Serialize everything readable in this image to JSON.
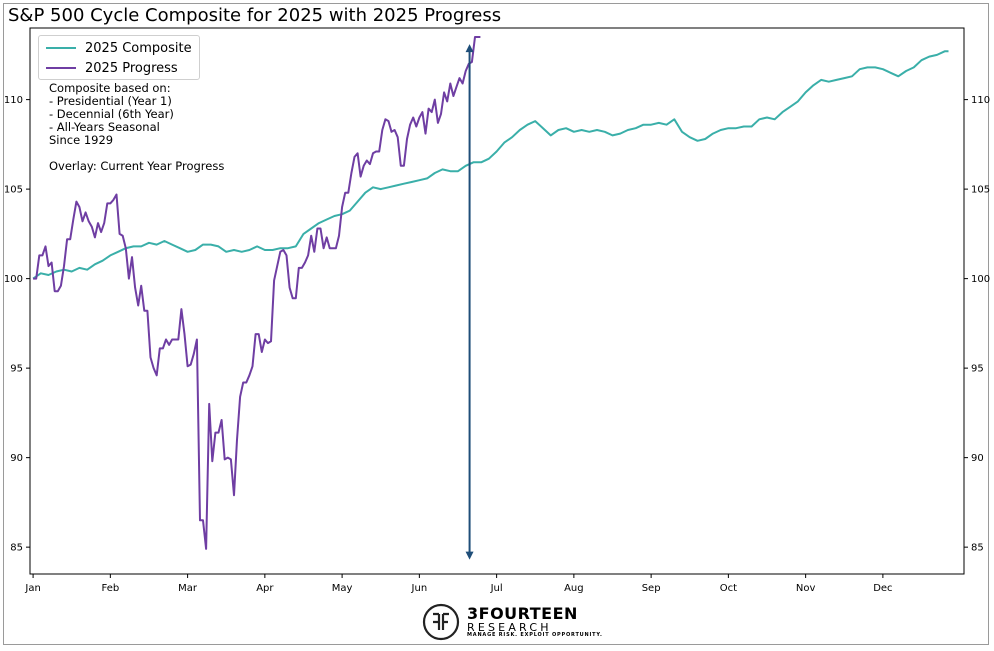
{
  "chart_data": {
    "type": "line",
    "title": "S&P 500 Cycle Composite for 2025 with 2025 Progress",
    "xlabel": "",
    "ylabel": "",
    "ylim": [
      83.5,
      114
    ],
    "xlim": [
      -0.04,
      12.05
    ],
    "yticks": [
      85,
      90,
      95,
      100,
      105,
      110
    ],
    "xticks": [
      "Jan",
      "Feb",
      "Mar",
      "Apr",
      "May",
      "Jun",
      "Jul",
      "Aug",
      "Sep",
      "Oct",
      "Nov",
      "Dec"
    ],
    "legend": {
      "position": "top-left",
      "entries": [
        "2025 Composite",
        "2025 Progress"
      ]
    },
    "series": [
      {
        "name": "2025 Composite",
        "color": "#3aafa9",
        "points": [
          [
            0.0,
            100.0
          ],
          [
            0.1,
            100.3
          ],
          [
            0.2,
            100.2
          ],
          [
            0.3,
            100.4
          ],
          [
            0.4,
            100.5
          ],
          [
            0.5,
            100.4
          ],
          [
            0.6,
            100.6
          ],
          [
            0.7,
            100.5
          ],
          [
            0.8,
            100.8
          ],
          [
            0.9,
            101.0
          ],
          [
            1.0,
            101.3
          ],
          [
            1.1,
            101.5
          ],
          [
            1.2,
            101.7
          ],
          [
            1.3,
            101.8
          ],
          [
            1.4,
            101.8
          ],
          [
            1.5,
            102.0
          ],
          [
            1.6,
            101.9
          ],
          [
            1.7,
            102.1
          ],
          [
            1.8,
            101.9
          ],
          [
            1.9,
            101.7
          ],
          [
            2.0,
            101.5
          ],
          [
            2.1,
            101.6
          ],
          [
            2.2,
            101.9
          ],
          [
            2.3,
            101.9
          ],
          [
            2.4,
            101.8
          ],
          [
            2.5,
            101.5
          ],
          [
            2.6,
            101.6
          ],
          [
            2.7,
            101.5
          ],
          [
            2.8,
            101.6
          ],
          [
            2.9,
            101.8
          ],
          [
            3.0,
            101.6
          ],
          [
            3.1,
            101.6
          ],
          [
            3.2,
            101.7
          ],
          [
            3.3,
            101.7
          ],
          [
            3.4,
            101.8
          ],
          [
            3.5,
            102.5
          ],
          [
            3.6,
            102.8
          ],
          [
            3.7,
            103.1
          ],
          [
            3.8,
            103.3
          ],
          [
            3.9,
            103.5
          ],
          [
            4.0,
            103.6
          ],
          [
            4.1,
            103.8
          ],
          [
            4.2,
            104.3
          ],
          [
            4.3,
            104.8
          ],
          [
            4.4,
            105.1
          ],
          [
            4.5,
            105.0
          ],
          [
            4.6,
            105.1
          ],
          [
            4.7,
            105.2
          ],
          [
            4.8,
            105.3
          ],
          [
            4.9,
            105.4
          ],
          [
            5.0,
            105.5
          ],
          [
            5.1,
            105.6
          ],
          [
            5.2,
            105.9
          ],
          [
            5.3,
            106.1
          ],
          [
            5.4,
            106.0
          ],
          [
            5.5,
            106.0
          ],
          [
            5.6,
            106.3
          ],
          [
            5.7,
            106.5
          ],
          [
            5.8,
            106.5
          ],
          [
            5.9,
            106.7
          ],
          [
            6.0,
            107.1
          ],
          [
            6.1,
            107.6
          ],
          [
            6.2,
            107.9
          ],
          [
            6.3,
            108.3
          ],
          [
            6.4,
            108.6
          ],
          [
            6.5,
            108.8
          ],
          [
            6.6,
            108.4
          ],
          [
            6.7,
            108.0
          ],
          [
            6.8,
            108.3
          ],
          [
            6.9,
            108.4
          ],
          [
            7.0,
            108.2
          ],
          [
            7.1,
            108.3
          ],
          [
            7.2,
            108.2
          ],
          [
            7.3,
            108.3
          ],
          [
            7.4,
            108.2
          ],
          [
            7.5,
            108.0
          ],
          [
            7.6,
            108.1
          ],
          [
            7.7,
            108.3
          ],
          [
            7.8,
            108.4
          ],
          [
            7.9,
            108.6
          ],
          [
            8.0,
            108.6
          ],
          [
            8.1,
            108.7
          ],
          [
            8.2,
            108.6
          ],
          [
            8.3,
            108.9
          ],
          [
            8.4,
            108.2
          ],
          [
            8.5,
            107.9
          ],
          [
            8.6,
            107.7
          ],
          [
            8.7,
            107.8
          ],
          [
            8.8,
            108.1
          ],
          [
            8.9,
            108.3
          ],
          [
            9.0,
            108.4
          ],
          [
            9.1,
            108.4
          ],
          [
            9.2,
            108.5
          ],
          [
            9.3,
            108.5
          ],
          [
            9.4,
            108.9
          ],
          [
            9.5,
            109.0
          ],
          [
            9.6,
            108.9
          ],
          [
            9.7,
            109.3
          ],
          [
            9.8,
            109.6
          ],
          [
            9.9,
            109.9
          ],
          [
            10.0,
            110.4
          ],
          [
            10.1,
            110.8
          ],
          [
            10.2,
            111.1
          ],
          [
            10.3,
            111.0
          ],
          [
            10.4,
            111.1
          ],
          [
            10.5,
            111.2
          ],
          [
            10.6,
            111.3
          ],
          [
            10.7,
            111.7
          ],
          [
            10.8,
            111.8
          ],
          [
            10.9,
            111.8
          ],
          [
            11.0,
            111.7
          ],
          [
            11.1,
            111.5
          ],
          [
            11.2,
            111.3
          ],
          [
            11.3,
            111.6
          ],
          [
            11.4,
            111.8
          ],
          [
            11.5,
            112.2
          ],
          [
            11.6,
            112.4
          ],
          [
            11.7,
            112.5
          ],
          [
            11.8,
            112.7
          ],
          [
            11.85,
            112.7
          ]
        ]
      },
      {
        "name": "2025 Progress",
        "color": "#6f3ea3",
        "points": [
          [
            0.0,
            100.0
          ],
          [
            0.04,
            100.0
          ],
          [
            0.08,
            101.3
          ],
          [
            0.12,
            101.3
          ],
          [
            0.16,
            101.8
          ],
          [
            0.2,
            100.7
          ],
          [
            0.24,
            100.9
          ],
          [
            0.28,
            99.3
          ],
          [
            0.32,
            99.3
          ],
          [
            0.36,
            99.6
          ],
          [
            0.4,
            100.7
          ],
          [
            0.44,
            102.2
          ],
          [
            0.48,
            102.2
          ],
          [
            0.52,
            103.3
          ],
          [
            0.56,
            104.3
          ],
          [
            0.6,
            104.0
          ],
          [
            0.64,
            103.2
          ],
          [
            0.68,
            103.7
          ],
          [
            0.72,
            103.2
          ],
          [
            0.76,
            102.9
          ],
          [
            0.8,
            102.3
          ],
          [
            0.84,
            103.1
          ],
          [
            0.88,
            102.6
          ],
          [
            0.92,
            103.1
          ],
          [
            0.96,
            104.2
          ],
          [
            1.0,
            104.2
          ],
          [
            1.04,
            104.4
          ],
          [
            1.08,
            104.7
          ],
          [
            1.12,
            102.5
          ],
          [
            1.16,
            102.4
          ],
          [
            1.2,
            101.7
          ],
          [
            1.24,
            100.0
          ],
          [
            1.28,
            101.2
          ],
          [
            1.32,
            99.5
          ],
          [
            1.36,
            98.5
          ],
          [
            1.4,
            99.6
          ],
          [
            1.44,
            98.2
          ],
          [
            1.48,
            98.2
          ],
          [
            1.52,
            95.6
          ],
          [
            1.56,
            95.0
          ],
          [
            1.6,
            94.6
          ],
          [
            1.64,
            96.1
          ],
          [
            1.68,
            96.1
          ],
          [
            1.72,
            96.6
          ],
          [
            1.76,
            96.3
          ],
          [
            1.8,
            96.6
          ],
          [
            1.84,
            96.6
          ],
          [
            1.88,
            96.6
          ],
          [
            1.92,
            98.3
          ],
          [
            1.96,
            96.9
          ],
          [
            2.0,
            95.1
          ],
          [
            2.04,
            95.2
          ],
          [
            2.08,
            95.8
          ],
          [
            2.12,
            96.6
          ],
          [
            2.16,
            86.5
          ],
          [
            2.2,
            86.5
          ],
          [
            2.24,
            84.9
          ],
          [
            2.28,
            93.0
          ],
          [
            2.32,
            89.8
          ],
          [
            2.36,
            91.4
          ],
          [
            2.4,
            91.4
          ],
          [
            2.44,
            92.1
          ],
          [
            2.48,
            89.9
          ],
          [
            2.52,
            90.0
          ],
          [
            2.56,
            89.9
          ],
          [
            2.6,
            87.9
          ],
          [
            2.64,
            91.0
          ],
          [
            2.68,
            93.4
          ],
          [
            2.72,
            94.2
          ],
          [
            2.76,
            94.2
          ],
          [
            2.8,
            94.6
          ],
          [
            2.84,
            95.1
          ],
          [
            2.88,
            96.9
          ],
          [
            2.92,
            96.9
          ],
          [
            2.96,
            95.9
          ],
          [
            3.0,
            96.6
          ],
          [
            3.04,
            96.4
          ],
          [
            3.08,
            96.5
          ],
          [
            3.12,
            99.9
          ],
          [
            3.16,
            100.7
          ],
          [
            3.2,
            101.5
          ],
          [
            3.24,
            101.6
          ],
          [
            3.28,
            101.3
          ],
          [
            3.32,
            99.5
          ],
          [
            3.36,
            98.9
          ],
          [
            3.4,
            98.9
          ],
          [
            3.44,
            100.6
          ],
          [
            3.48,
            100.6
          ],
          [
            3.52,
            100.9
          ],
          [
            3.56,
            101.3
          ],
          [
            3.6,
            102.4
          ],
          [
            3.64,
            101.5
          ],
          [
            3.68,
            102.8
          ],
          [
            3.72,
            102.8
          ],
          [
            3.76,
            101.7
          ],
          [
            3.8,
            102.3
          ],
          [
            3.84,
            101.7
          ],
          [
            3.88,
            101.7
          ],
          [
            3.92,
            101.7
          ],
          [
            3.96,
            102.4
          ],
          [
            4.0,
            104.0
          ],
          [
            4.04,
            104.8
          ],
          [
            4.08,
            104.8
          ],
          [
            4.12,
            105.9
          ],
          [
            4.16,
            106.8
          ],
          [
            4.2,
            107.0
          ],
          [
            4.24,
            105.7
          ],
          [
            4.28,
            106.3
          ],
          [
            4.32,
            106.6
          ],
          [
            4.36,
            106.4
          ],
          [
            4.4,
            107.0
          ],
          [
            4.44,
            107.1
          ],
          [
            4.48,
            107.1
          ],
          [
            4.52,
            108.3
          ],
          [
            4.56,
            108.9
          ],
          [
            4.6,
            108.8
          ],
          [
            4.64,
            108.2
          ],
          [
            4.68,
            108.3
          ],
          [
            4.72,
            107.9
          ],
          [
            4.76,
            106.3
          ],
          [
            4.8,
            106.3
          ],
          [
            4.84,
            107.8
          ],
          [
            4.88,
            108.6
          ],
          [
            4.92,
            109.0
          ],
          [
            4.96,
            108.5
          ],
          [
            5.0,
            109.0
          ],
          [
            5.04,
            109.3
          ],
          [
            5.08,
            108.1
          ],
          [
            5.12,
            109.5
          ],
          [
            5.16,
            109.3
          ],
          [
            5.2,
            110.0
          ],
          [
            5.24,
            108.7
          ],
          [
            5.28,
            109.2
          ],
          [
            5.32,
            110.4
          ],
          [
            5.36,
            109.9
          ],
          [
            5.4,
            110.9
          ],
          [
            5.44,
            110.2
          ],
          [
            5.48,
            110.7
          ],
          [
            5.52,
            111.2
          ],
          [
            5.56,
            110.9
          ],
          [
            5.6,
            111.6
          ],
          [
            5.64,
            112.0
          ],
          [
            5.68,
            112.1
          ],
          [
            5.72,
            113.5
          ],
          [
            5.76,
            113.5
          ],
          [
            5.79,
            113.5
          ]
        ]
      }
    ],
    "annotations": [
      "Composite based on:",
      "- Presidential (Year 1)",
      "- Decennial (6th Year)",
      "- All-Years Seasonal",
      "Since 1929",
      "Overlay: Current Year Progress"
    ],
    "arrow": {
      "color": "#1f4e79",
      "x": 5.65,
      "y_from": 84.3,
      "y_to": 113.1
    }
  },
  "logo": {
    "name": "3FOURTEEN",
    "subtitle": "RESEARCH",
    "tagline": "MANAGE RISK. EXPLOIT OPPORTUNITY."
  }
}
